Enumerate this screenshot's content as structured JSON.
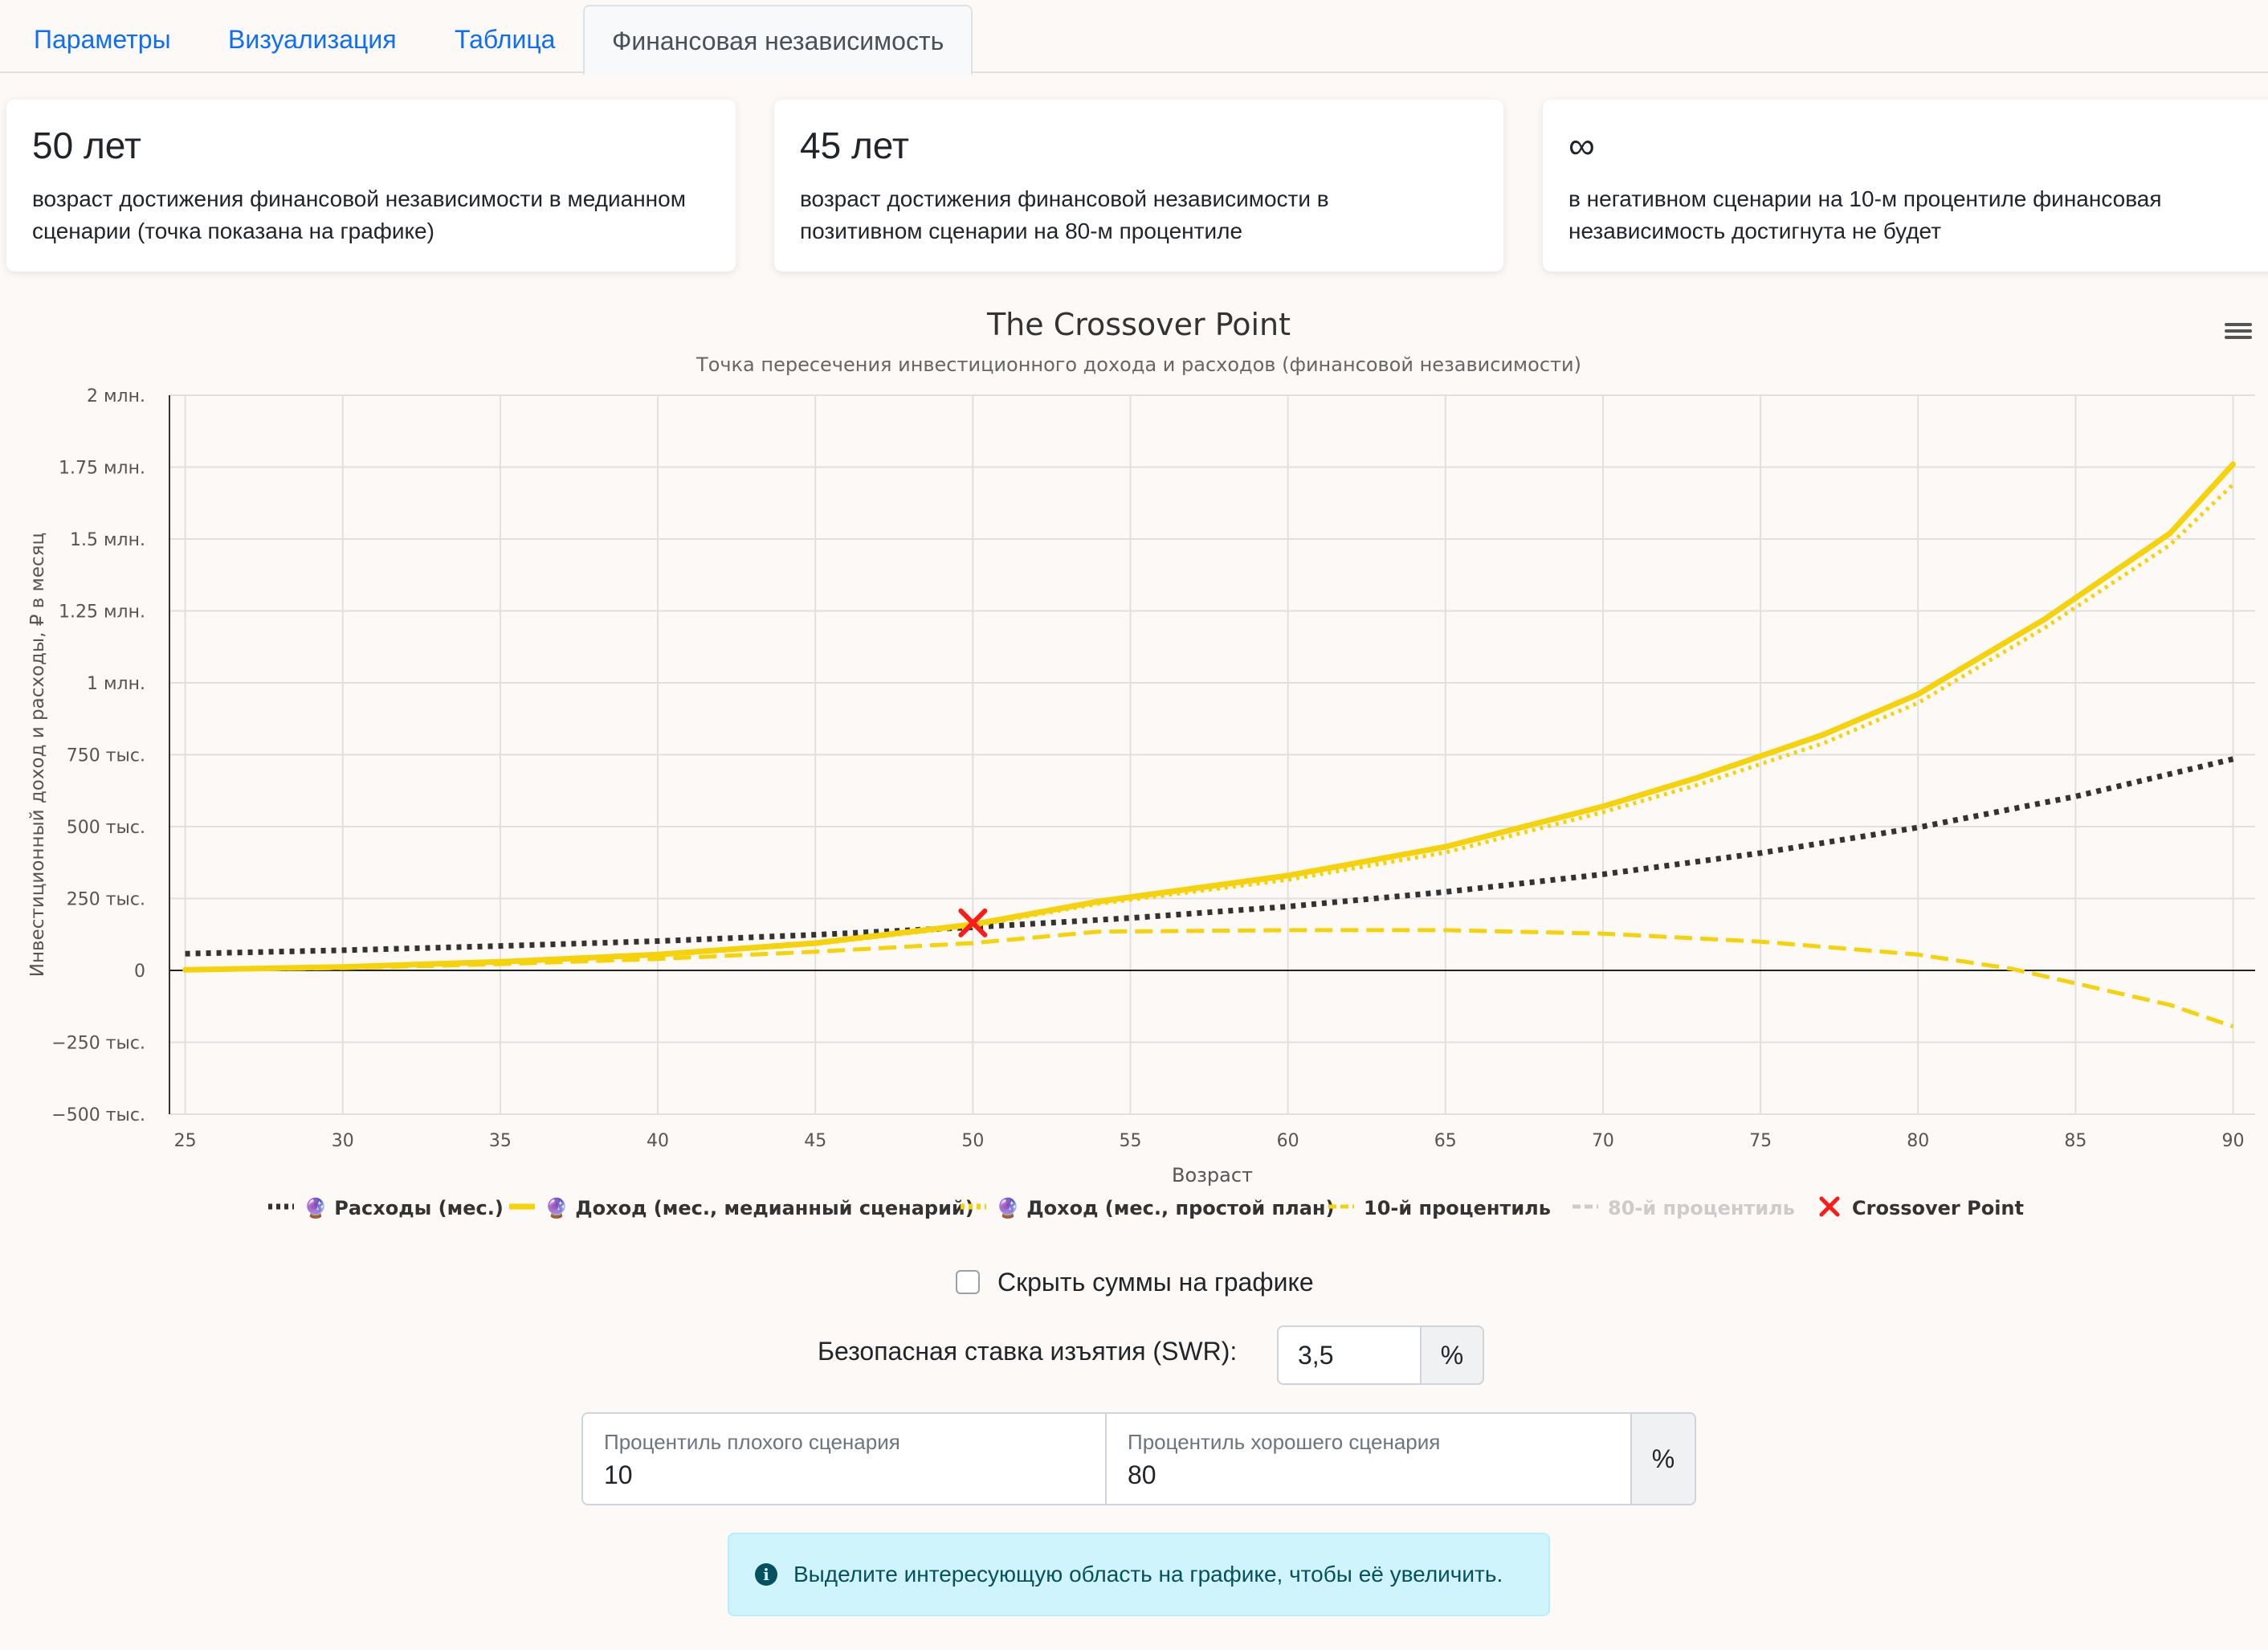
{
  "tabs": [
    {
      "label": "Параметры",
      "active": false
    },
    {
      "label": "Визуализация",
      "active": false
    },
    {
      "label": "Таблица",
      "active": false
    },
    {
      "label": "Финансовая независимость",
      "active": true
    }
  ],
  "cards": [
    {
      "value": "50 лет",
      "text": "возраст достижения финансовой независимости в медианном сценарии (точка показана на графике)"
    },
    {
      "value": "45 лет",
      "text": "возраст достижения финансовой независимости в позитивном сценарии на 80-м процентиле"
    },
    {
      "value": "∞",
      "text": "в негативном сценарии на 10-м процентиле финансовая независимость достигнута не будет"
    }
  ],
  "chart_data": {
    "type": "line",
    "title": "The Crossover Point",
    "subtitle": "Точка пересечения инвестиционного дохода и расходов (финансовой независимости)",
    "xlabel": "Возраст",
    "ylabel": "Инвестиционный доход и расходы, ₽ в месяц",
    "xlim": [
      24.5,
      90.7
    ],
    "ylim": [
      -500000,
      2000000
    ],
    "x_ticks": [
      25,
      30,
      35,
      40,
      45,
      50,
      55,
      60,
      65,
      70,
      75,
      80,
      85,
      90
    ],
    "y_ticks": [
      {
        "value": 2000000,
        "label": "2 млн."
      },
      {
        "value": 1750000,
        "label": "1.75 млн."
      },
      {
        "value": 1500000,
        "label": "1.5 млн."
      },
      {
        "value": 1250000,
        "label": "1.25 млн."
      },
      {
        "value": 1000000,
        "label": "1 млн."
      },
      {
        "value": 750000,
        "label": "750 тыс."
      },
      {
        "value": 500000,
        "label": "500 тыс."
      },
      {
        "value": 250000,
        "label": "250 тыс."
      },
      {
        "value": 0,
        "label": "0"
      },
      {
        "value": -250000,
        "label": "−250 тыс."
      },
      {
        "value": -500000,
        "label": "−500 тыс."
      }
    ],
    "grid": true,
    "legend_position": "bottom-center",
    "series": [
      {
        "name": "🔮 Расходы (мес.)",
        "color": "#333333",
        "style": "dotted",
        "visible": true,
        "x": [
          25,
          30,
          35,
          40,
          45,
          50,
          55,
          60,
          65,
          70,
          75,
          80,
          85,
          90
        ],
        "y": [
          58000,
          70000,
          85000,
          102000,
          124000,
          150000,
          182000,
          222000,
          273000,
          334000,
          408000,
          497000,
          605000,
          735000
        ]
      },
      {
        "name": "🔮 Доход (мес., медианный сценарий)",
        "color": "#f5d20a",
        "style": "solid",
        "visible": true,
        "x": [
          25,
          30,
          35,
          40,
          45,
          50,
          54,
          60,
          65,
          70,
          73,
          77,
          80,
          84,
          88,
          90
        ],
        "y": [
          2000,
          12000,
          30000,
          55000,
          95000,
          160000,
          240000,
          330000,
          430000,
          570000,
          670000,
          820000,
          960000,
          1220000,
          1520000,
          1760000
        ]
      },
      {
        "name": "🔮 Доход (мес., простой план)",
        "color": "#f5d20a",
        "style": "dotted",
        "visible": true,
        "x": [
          25,
          30,
          35,
          40,
          45,
          50,
          54,
          60,
          65,
          70,
          73,
          77,
          80,
          84,
          88,
          90
        ],
        "y": [
          2000,
          11000,
          28000,
          52000,
          92000,
          155000,
          232000,
          315000,
          410000,
          550000,
          645000,
          790000,
          930000,
          1190000,
          1480000,
          1690000
        ]
      },
      {
        "name": "10-й процентиль",
        "color": "#f5d20a",
        "style": "dashed",
        "visible": true,
        "x": [
          25,
          30,
          35,
          40,
          45,
          50,
          54,
          60,
          65,
          70,
          75,
          80,
          83,
          85,
          88,
          90
        ],
        "y": [
          0,
          8000,
          22000,
          40000,
          65000,
          95000,
          135000,
          140000,
          140000,
          128000,
          100000,
          55000,
          5000,
          -45000,
          -120000,
          -195000
        ]
      },
      {
        "name": "80-й процентиль",
        "color": "#cccccc",
        "style": "dashed",
        "visible": false,
        "x": [],
        "y": []
      },
      {
        "name": "Crossover Point",
        "color": "#ff1a1a",
        "style": "marker-x",
        "visible": true,
        "x": [
          50
        ],
        "y": [
          165000
        ]
      }
    ]
  },
  "hide_sums_label": "Скрыть суммы на графике",
  "swr": {
    "label": "Безопасная ставка изъятия (SWR):",
    "value": "3,5",
    "suffix": "%"
  },
  "percentiles": {
    "bad_label": "Процентиль плохого сценария",
    "bad_value": "10",
    "good_label": "Процентиль хорошего сценария",
    "good_value": "80",
    "suffix": "%"
  },
  "alert": "Выделите интересующую область на графике, чтобы её увеличить.",
  "icons": {
    "menu": "hamburger-menu-icon",
    "info": "info-icon"
  }
}
